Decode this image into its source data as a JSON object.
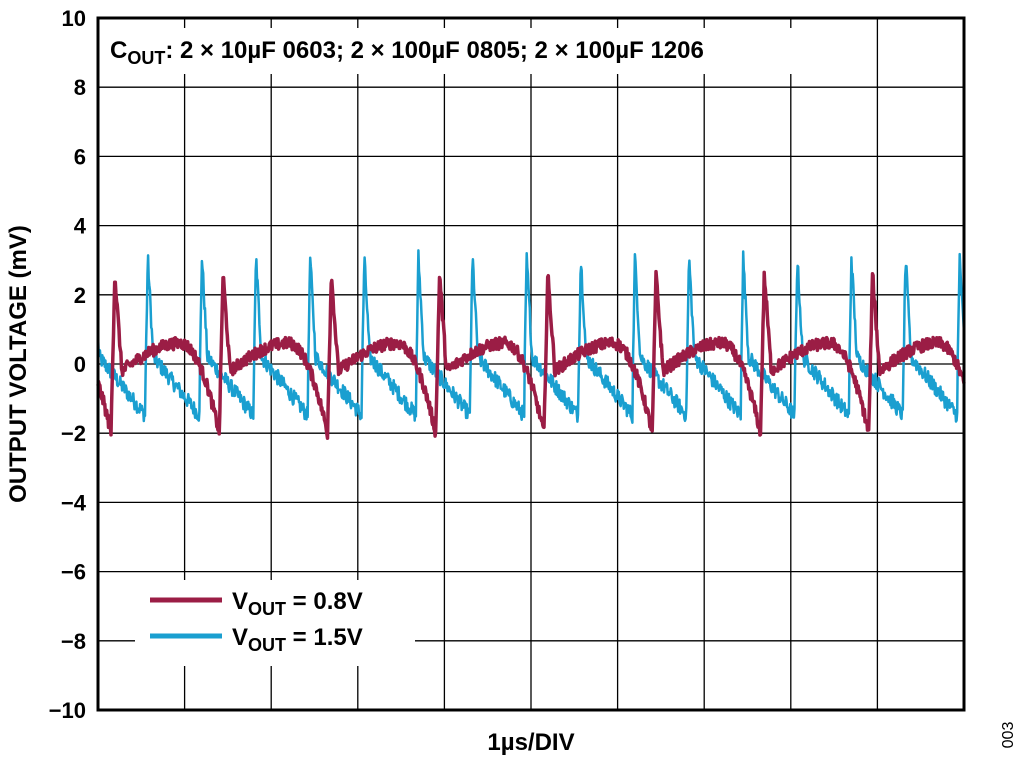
{
  "chart_data": {
    "type": "line",
    "title": "",
    "xlabel": "1µs/DIV",
    "ylabel": "OUTPUT VOLTAGE (mV)",
    "ylim": [
      -10,
      10
    ],
    "yticks": [
      "10",
      "8",
      "6",
      "4",
      "2",
      "0",
      "−2",
      "−4",
      "−6",
      "−8",
      "−10"
    ],
    "x_divisions": 10,
    "grid": true,
    "annotation": {
      "main": "C",
      "sub": "OUT",
      "rest": ": 2 × 10µF 0603; 2 × 100µF 0805; 2 × 100µF 1206"
    },
    "legend_position": "bottom-left",
    "figure_id": "003",
    "series": [
      {
        "legend_main": "V",
        "legend_sub": "OUT",
        "legend_rest": " = 0.8V",
        "color": "#9b1d45",
        "waveform": {
          "period_div": 1.25,
          "peak_mv": 2.6,
          "trough_mv": -2.0,
          "baseline_mv": 0.0,
          "hump_mv": 0.6
        }
      },
      {
        "legend_main": "V",
        "legend_sub": "OUT",
        "legend_rest": " = 1.5V",
        "color": "#1a9fd0",
        "waveform": {
          "period_div": 1.25,
          "peak_mv": 3.1,
          "trough_mv": -1.5,
          "baseline_mv": 0.0,
          "hump_mv": 0.3
        }
      }
    ]
  }
}
